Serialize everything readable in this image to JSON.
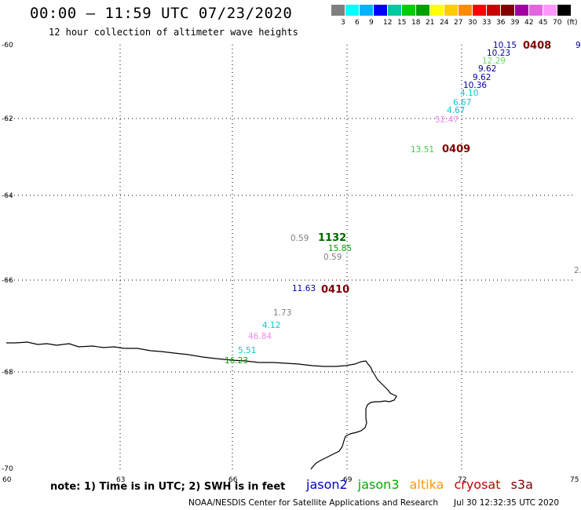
{
  "header": {
    "title": "00:00 – 11:59 UTC 07/23/2020",
    "subtitle": "12 hour collection of altimeter wave heights"
  },
  "legend": {
    "colors": [
      "#808080",
      "#00ffff",
      "#00b4ff",
      "#0000ff",
      "#00c8a0",
      "#00cc00",
      "#00a000",
      "#ffff00",
      "#ffcc00",
      "#ff8c00",
      "#ff0000",
      "#cc0000",
      "#800000",
      "#a000a0",
      "#e066e0",
      "#ff99ff",
      "#000000"
    ],
    "labels": [
      "3",
      "6",
      "9",
      "12",
      "15",
      "18",
      "21",
      "24",
      "27",
      "30",
      "33",
      "36",
      "39",
      "42",
      "45",
      "70",
      "(ft)"
    ]
  },
  "axes": {
    "lat_labels": [
      "-60",
      "-62",
      "-64",
      "-66",
      "-68",
      "-70"
    ],
    "lon_labels": [
      "60",
      "63",
      "66",
      "69",
      "72",
      "75"
    ]
  },
  "observations": [
    {
      "text": "10.15",
      "color": "#0000a0"
    },
    {
      "text": "10.23",
      "color": "#0000a0"
    },
    {
      "text": "12.29",
      "color": "#66dd66"
    },
    {
      "text": "9.62",
      "color": "#0000a0"
    },
    {
      "text": "9.62",
      "color": "#0000a0"
    },
    {
      "text": "10.36",
      "color": "#0000a0"
    },
    {
      "text": "4.10",
      "color": "#00cccc"
    },
    {
      "text": "6.67",
      "color": "#00cccc"
    },
    {
      "text": "4.67",
      "color": "#00cccc"
    },
    {
      "text": "52.47",
      "color": "#ee88ee"
    },
    {
      "text": "13.51",
      "color": "#44cc44"
    },
    {
      "text": "0.59",
      "color": "#808080"
    },
    {
      "text": "15.85",
      "color": "#00a000"
    },
    {
      "text": "0.59",
      "color": "#808080"
    },
    {
      "text": "11.63",
      "color": "#0000a0"
    },
    {
      "text": "1.73",
      "color": "#808080"
    },
    {
      "text": "4.12",
      "color": "#00cccc"
    },
    {
      "text": "46.84",
      "color": "#ee88ee"
    },
    {
      "text": "5.51",
      "color": "#00cccc"
    },
    {
      "text": "16.23",
      "color": "#00a000"
    },
    {
      "text": "9",
      "color": "#0000a0"
    },
    {
      "text": "2.",
      "color": "#808080"
    }
  ],
  "time_tags": [
    {
      "text": "0408",
      "color": "#800000"
    },
    {
      "text": "0409",
      "color": "#800000"
    },
    {
      "text": "1132",
      "color": "#006600"
    },
    {
      "text": "0410",
      "color": "#800000"
    }
  ],
  "footer": {
    "note": "note: 1) Time is in UTC; 2) SWH is in feet",
    "satellites": [
      {
        "name": "jason2",
        "color": "#0000cc"
      },
      {
        "name": "jason3",
        "color": "#00aa00"
      },
      {
        "name": "altika",
        "color": "#ff9900"
      },
      {
        "name": "cryosat",
        "color": "#cc0000"
      },
      {
        "name": "s3a",
        "color": "#800000"
      }
    ],
    "credit": "NOAA/NESDIS Center for Satellite Applications and Research",
    "timestamp": "Jul 30 12:32:35 UTC 2020"
  }
}
